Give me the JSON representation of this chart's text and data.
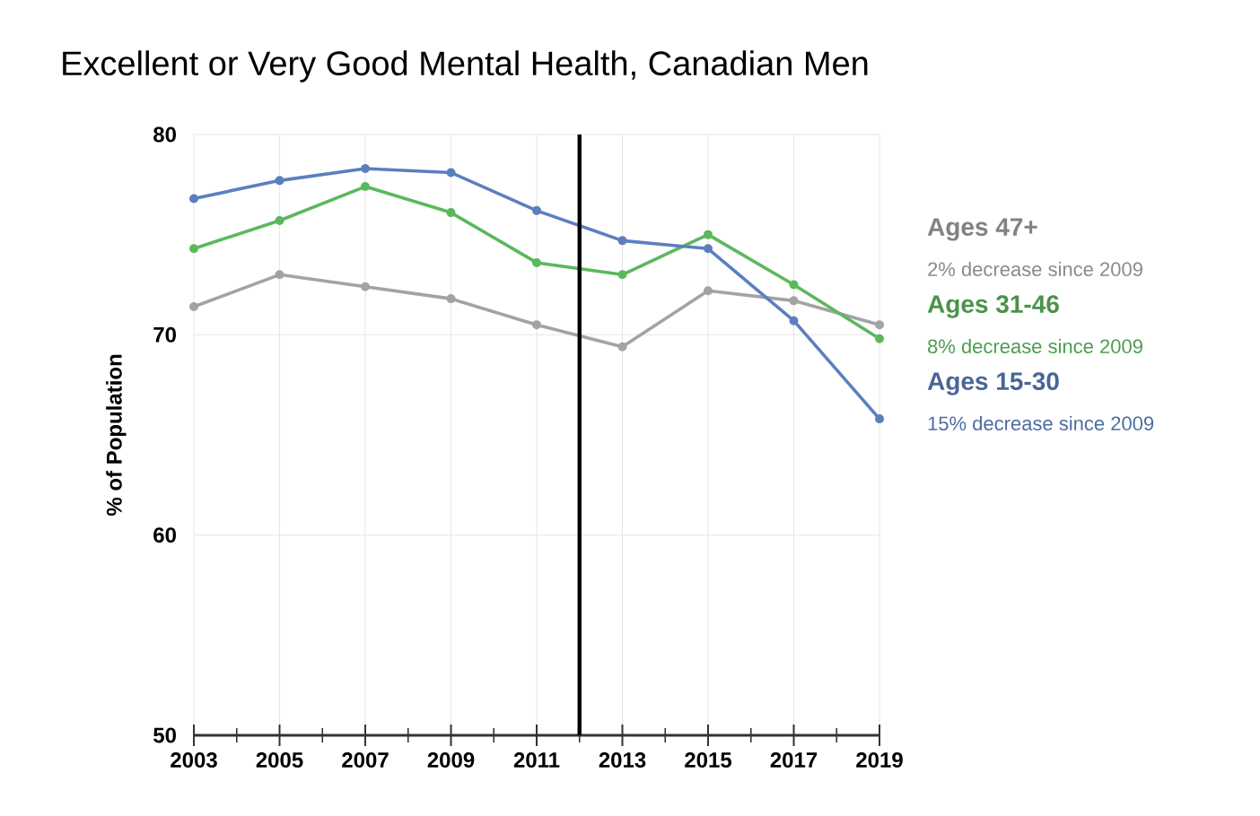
{
  "chart_data": {
    "type": "line",
    "title": "Excellent or Very Good Mental Health, Canadian Men",
    "ylabel": "% of Population",
    "x": [
      2003,
      2005,
      2007,
      2009,
      2011,
      2013,
      2015,
      2017,
      2019
    ],
    "series": [
      {
        "name": "Ages 47+",
        "color": "#a3a3a3",
        "values": [
          71.4,
          73.0,
          72.4,
          71.8,
          70.5,
          69.4,
          72.2,
          71.7,
          70.5
        ]
      },
      {
        "name": "Ages 31-46",
        "color": "#5cb85c",
        "values": [
          74.3,
          75.7,
          77.4,
          76.1,
          73.6,
          73.0,
          75.0,
          72.5,
          69.8
        ]
      },
      {
        "name": "Ages 15-30",
        "color": "#5b7fbf",
        "values": [
          76.8,
          77.7,
          78.3,
          78.1,
          76.2,
          74.7,
          74.3,
          70.7,
          65.8
        ]
      }
    ],
    "annotations": [
      "2% decrease since 2009",
      "8% decrease since 2009",
      "15% decrease since 2009"
    ],
    "ref_lines": [
      {
        "axis": "x",
        "value": 2012,
        "color": "#000000"
      }
    ],
    "xlim": [
      2003,
      2019
    ],
    "xticks": [
      2003,
      2005,
      2007,
      2009,
      2011,
      2013,
      2015,
      2017,
      2019
    ],
    "ylim": [
      50,
      80
    ],
    "yticks": [
      50,
      60,
      70,
      80
    ],
    "grid": true,
    "legend": "right",
    "marker": "circle",
    "line_style": "solid"
  }
}
